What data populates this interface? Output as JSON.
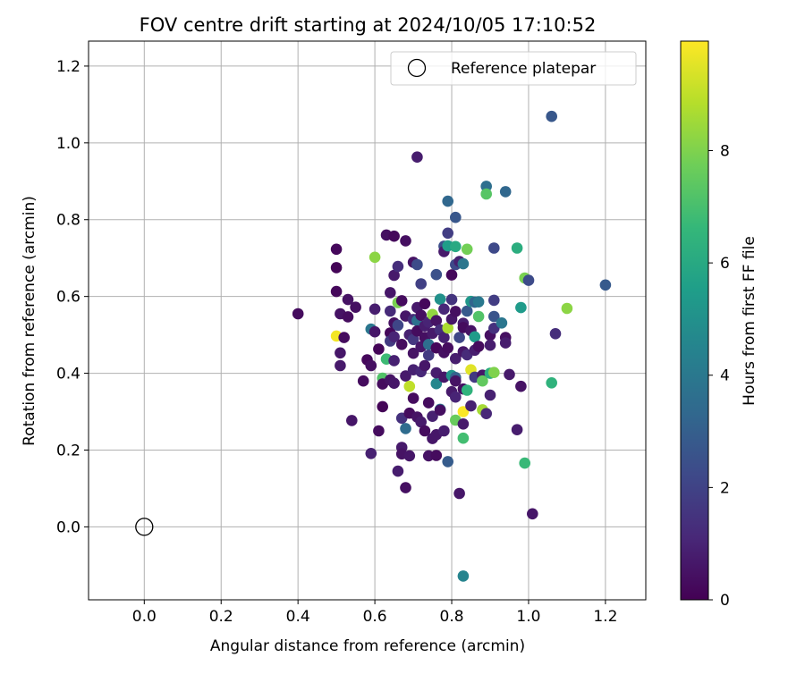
{
  "chart_data": {
    "type": "scatter",
    "title": "FOV centre drift starting at 2024/10/05 17:10:52",
    "xlabel": "Angular distance from reference (arcmin)",
    "ylabel": "Rotation from reference (arcmin)",
    "xlim": [
      -0.145,
      1.305
    ],
    "ylim": [
      -0.19,
      1.265
    ],
    "xticks": [
      "0.0",
      "0.2",
      "0.4",
      "0.6",
      "0.8",
      "1.0",
      "1.2"
    ],
    "yticks": [
      "0.0",
      "0.2",
      "0.4",
      "0.6",
      "0.8",
      "1.0",
      "1.2"
    ],
    "grid": true,
    "legend": {
      "placement": "top-right",
      "entries": [
        "Reference platepar"
      ]
    },
    "reference_point": {
      "x": 0.0,
      "y": 0.0
    },
    "colorbar": {
      "label": "Hours from first FF file",
      "colormap": "viridis",
      "range": [
        0,
        9.95
      ],
      "ticks": [
        "0",
        "2",
        "4",
        "6",
        "8"
      ],
      "stops": [
        "#440154",
        "#482878",
        "#3e4989",
        "#31688e",
        "#26828e",
        "#1f9e89",
        "#35b779",
        "#6ece58",
        "#b5de2b",
        "#fde725"
      ]
    },
    "points": [
      {
        "x": 0.4,
        "y": 0.555,
        "h": 0.3
      },
      {
        "x": 0.5,
        "y": 0.723,
        "h": 0.2
      },
      {
        "x": 0.5,
        "y": 0.675,
        "h": 0.1
      },
      {
        "x": 0.5,
        "y": 0.613,
        "h": 0.2
      },
      {
        "x": 0.5,
        "y": 0.497,
        "h": 9.8
      },
      {
        "x": 0.51,
        "y": 0.555,
        "h": 0.5
      },
      {
        "x": 0.51,
        "y": 0.453,
        "h": 0.6
      },
      {
        "x": 0.51,
        "y": 0.42,
        "h": 0.7
      },
      {
        "x": 0.52,
        "y": 0.493,
        "h": 0.3
      },
      {
        "x": 0.53,
        "y": 0.592,
        "h": 0.5
      },
      {
        "x": 0.53,
        "y": 0.547,
        "h": 0.3
      },
      {
        "x": 0.54,
        "y": 0.277,
        "h": 0.6
      },
      {
        "x": 0.55,
        "y": 0.572,
        "h": 0.4
      },
      {
        "x": 0.57,
        "y": 0.38,
        "h": 0.3
      },
      {
        "x": 0.58,
        "y": 0.435,
        "h": 0.2
      },
      {
        "x": 0.59,
        "y": 0.42,
        "h": 0.4
      },
      {
        "x": 0.59,
        "y": 0.515,
        "h": 3.9
      },
      {
        "x": 0.59,
        "y": 0.191,
        "h": 0.9
      },
      {
        "x": 0.6,
        "y": 0.702,
        "h": 8.2
      },
      {
        "x": 0.6,
        "y": 0.567,
        "h": 0.8
      },
      {
        "x": 0.6,
        "y": 0.508,
        "h": 0.6
      },
      {
        "x": 0.61,
        "y": 0.463,
        "h": 0.1
      },
      {
        "x": 0.61,
        "y": 0.25,
        "h": 0.3
      },
      {
        "x": 0.62,
        "y": 0.387,
        "h": 7.2
      },
      {
        "x": 0.62,
        "y": 0.313,
        "h": 0.1
      },
      {
        "x": 0.62,
        "y": 0.372,
        "h": 0.3
      },
      {
        "x": 0.63,
        "y": 0.76,
        "h": 0.4
      },
      {
        "x": 0.63,
        "y": 0.437,
        "h": 6.8
      },
      {
        "x": 0.64,
        "y": 0.61,
        "h": 0.6
      },
      {
        "x": 0.64,
        "y": 0.562,
        "h": 1.2
      },
      {
        "x": 0.64,
        "y": 0.505,
        "h": 0.2
      },
      {
        "x": 0.64,
        "y": 0.484,
        "h": 1.7
      },
      {
        "x": 0.64,
        "y": 0.383,
        "h": 0.5
      },
      {
        "x": 0.65,
        "y": 0.757,
        "h": 0.2
      },
      {
        "x": 0.65,
        "y": 0.655,
        "h": 0.7
      },
      {
        "x": 0.65,
        "y": 0.531,
        "h": 0.4
      },
      {
        "x": 0.65,
        "y": 0.495,
        "h": 1.0
      },
      {
        "x": 0.65,
        "y": 0.374,
        "h": 0.6
      },
      {
        "x": 0.65,
        "y": 0.433,
        "h": 0.9
      },
      {
        "x": 0.66,
        "y": 0.678,
        "h": 1.3
      },
      {
        "x": 0.66,
        "y": 0.584,
        "h": 7.9
      },
      {
        "x": 0.66,
        "y": 0.525,
        "h": 2.1
      },
      {
        "x": 0.66,
        "y": 0.145,
        "h": 0.8
      },
      {
        "x": 0.67,
        "y": 0.207,
        "h": 0.7
      },
      {
        "x": 0.67,
        "y": 0.19,
        "h": 0.5
      },
      {
        "x": 0.67,
        "y": 0.283,
        "h": 1.4
      },
      {
        "x": 0.67,
        "y": 0.475,
        "h": 0.3
      },
      {
        "x": 0.67,
        "y": 0.589,
        "h": 0.3
      },
      {
        "x": 0.68,
        "y": 0.745,
        "h": 0.4
      },
      {
        "x": 0.68,
        "y": 0.549,
        "h": 0.6
      },
      {
        "x": 0.68,
        "y": 0.102,
        "h": 0.4
      },
      {
        "x": 0.68,
        "y": 0.256,
        "h": 3.5
      },
      {
        "x": 0.68,
        "y": 0.393,
        "h": 0.7
      },
      {
        "x": 0.69,
        "y": 0.5,
        "h": 0.9
      },
      {
        "x": 0.69,
        "y": 0.296,
        "h": 0.3
      },
      {
        "x": 0.69,
        "y": 0.185,
        "h": 0.6
      },
      {
        "x": 0.69,
        "y": 0.366,
        "h": 9.0
      },
      {
        "x": 0.7,
        "y": 0.689,
        "h": 0.5
      },
      {
        "x": 0.7,
        "y": 0.54,
        "h": 1.2
      },
      {
        "x": 0.7,
        "y": 0.452,
        "h": 0.5
      },
      {
        "x": 0.7,
        "y": 0.488,
        "h": 1.6
      },
      {
        "x": 0.7,
        "y": 0.409,
        "h": 0.9
      },
      {
        "x": 0.7,
        "y": 0.335,
        "h": 0.3
      },
      {
        "x": 0.71,
        "y": 0.683,
        "h": 2.3
      },
      {
        "x": 0.71,
        "y": 0.571,
        "h": 0.7
      },
      {
        "x": 0.71,
        "y": 0.537,
        "h": 3.7
      },
      {
        "x": 0.71,
        "y": 0.51,
        "h": 0.3
      },
      {
        "x": 0.71,
        "y": 0.286,
        "h": 0.5
      },
      {
        "x": 0.71,
        "y": 0.963,
        "h": 0.8
      },
      {
        "x": 0.72,
        "y": 0.633,
        "h": 1.9
      },
      {
        "x": 0.72,
        "y": 0.551,
        "h": 0.4
      },
      {
        "x": 0.72,
        "y": 0.469,
        "h": 0.6
      },
      {
        "x": 0.72,
        "y": 0.404,
        "h": 1.1
      },
      {
        "x": 0.72,
        "y": 0.273,
        "h": 0.7
      },
      {
        "x": 0.73,
        "y": 0.25,
        "h": 0.3
      },
      {
        "x": 0.73,
        "y": 0.581,
        "h": 0.2
      },
      {
        "x": 0.73,
        "y": 0.523,
        "h": 0.8
      },
      {
        "x": 0.73,
        "y": 0.493,
        "h": 0.4
      },
      {
        "x": 0.73,
        "y": 0.42,
        "h": 0.6
      },
      {
        "x": 0.74,
        "y": 0.533,
        "h": 1.0
      },
      {
        "x": 0.74,
        "y": 0.475,
        "h": 3.6
      },
      {
        "x": 0.74,
        "y": 0.323,
        "h": 0.3
      },
      {
        "x": 0.74,
        "y": 0.447,
        "h": 1.7
      },
      {
        "x": 0.74,
        "y": 0.185,
        "h": 0.5
      },
      {
        "x": 0.75,
        "y": 0.553,
        "h": 8.3
      },
      {
        "x": 0.75,
        "y": 0.504,
        "h": 0.7
      },
      {
        "x": 0.75,
        "y": 0.288,
        "h": 0.9
      },
      {
        "x": 0.75,
        "y": 0.23,
        "h": 0.6
      },
      {
        "x": 0.76,
        "y": 0.657,
        "h": 2.5
      },
      {
        "x": 0.76,
        "y": 0.537,
        "h": 0.5
      },
      {
        "x": 0.76,
        "y": 0.466,
        "h": 0.2
      },
      {
        "x": 0.76,
        "y": 0.373,
        "h": 4.6
      },
      {
        "x": 0.76,
        "y": 0.401,
        "h": 0.8
      },
      {
        "x": 0.76,
        "y": 0.24,
        "h": 0.6
      },
      {
        "x": 0.76,
        "y": 0.186,
        "h": 0.3
      },
      {
        "x": 0.77,
        "y": 0.593,
        "h": 5.0
      },
      {
        "x": 0.77,
        "y": 0.513,
        "h": 1.3
      },
      {
        "x": 0.77,
        "y": 0.306,
        "h": 3.9
      },
      {
        "x": 0.77,
        "y": 0.304,
        "h": 0.4
      },
      {
        "x": 0.78,
        "y": 0.731,
        "h": 2.4
      },
      {
        "x": 0.78,
        "y": 0.717,
        "h": 0.7
      },
      {
        "x": 0.78,
        "y": 0.567,
        "h": 1.1
      },
      {
        "x": 0.78,
        "y": 0.493,
        "h": 0.9
      },
      {
        "x": 0.78,
        "y": 0.454,
        "h": 0.4
      },
      {
        "x": 0.78,
        "y": 0.39,
        "h": 0.6
      },
      {
        "x": 0.78,
        "y": 0.25,
        "h": 0.8
      },
      {
        "x": 0.79,
        "y": 0.732,
        "h": 5.5
      },
      {
        "x": 0.79,
        "y": 0.518,
        "h": 8.7
      },
      {
        "x": 0.79,
        "y": 0.466,
        "h": 0.3
      },
      {
        "x": 0.79,
        "y": 0.17,
        "h": 2.9
      },
      {
        "x": 0.79,
        "y": 0.848,
        "h": 3.3
      },
      {
        "x": 0.79,
        "y": 0.765,
        "h": 1.8
      },
      {
        "x": 0.8,
        "y": 0.656,
        "h": 0.2
      },
      {
        "x": 0.8,
        "y": 0.592,
        "h": 1.5
      },
      {
        "x": 0.8,
        "y": 0.541,
        "h": 0.6
      },
      {
        "x": 0.8,
        "y": 0.394,
        "h": 5.1
      },
      {
        "x": 0.8,
        "y": 0.352,
        "h": 0.7
      },
      {
        "x": 0.81,
        "y": 0.806,
        "h": 2.7
      },
      {
        "x": 0.81,
        "y": 0.73,
        "h": 6.0
      },
      {
        "x": 0.81,
        "y": 0.683,
        "h": 2.2
      },
      {
        "x": 0.81,
        "y": 0.561,
        "h": 0.4
      },
      {
        "x": 0.81,
        "y": 0.438,
        "h": 0.8
      },
      {
        "x": 0.81,
        "y": 0.338,
        "h": 1.0
      },
      {
        "x": 0.81,
        "y": 0.389,
        "h": 3.1
      },
      {
        "x": 0.81,
        "y": 0.38,
        "h": 0.5
      },
      {
        "x": 0.81,
        "y": 0.278,
        "h": 7.6
      },
      {
        "x": 0.82,
        "y": 0.691,
        "h": 0.9
      },
      {
        "x": 0.82,
        "y": 0.493,
        "h": 2.1
      },
      {
        "x": 0.82,
        "y": 0.087,
        "h": 0.6
      },
      {
        "x": 0.83,
        "y": 0.3,
        "h": 9.9
      },
      {
        "x": 0.83,
        "y": 0.231,
        "h": 6.9
      },
      {
        "x": 0.83,
        "y": 0.685,
        "h": 3.9
      },
      {
        "x": 0.83,
        "y": 0.53,
        "h": 0.8
      },
      {
        "x": 0.83,
        "y": 0.519,
        "h": 0.3
      },
      {
        "x": 0.83,
        "y": 0.456,
        "h": 0.6
      },
      {
        "x": 0.83,
        "y": 0.359,
        "h": 0.4
      },
      {
        "x": 0.83,
        "y": 0.268,
        "h": 0.7
      },
      {
        "x": 0.83,
        "y": -0.128,
        "h": 4.5
      },
      {
        "x": 0.84,
        "y": 0.723,
        "h": 7.8
      },
      {
        "x": 0.84,
        "y": 0.562,
        "h": 2.8
      },
      {
        "x": 0.84,
        "y": 0.448,
        "h": 1.2
      },
      {
        "x": 0.84,
        "y": 0.356,
        "h": 6.4
      },
      {
        "x": 0.85,
        "y": 0.587,
        "h": 5.3
      },
      {
        "x": 0.85,
        "y": 0.511,
        "h": 0.5
      },
      {
        "x": 0.85,
        "y": 0.409,
        "h": 9.5
      },
      {
        "x": 0.85,
        "y": 0.315,
        "h": 0.9
      },
      {
        "x": 0.86,
        "y": 0.585,
        "h": 3.2
      },
      {
        "x": 0.86,
        "y": 0.495,
        "h": 5.4
      },
      {
        "x": 0.86,
        "y": 0.46,
        "h": 0.8
      },
      {
        "x": 0.86,
        "y": 0.39,
        "h": 1.7
      },
      {
        "x": 0.87,
        "y": 0.586,
        "h": 4.0
      },
      {
        "x": 0.87,
        "y": 0.548,
        "h": 7.2
      },
      {
        "x": 0.87,
        "y": 0.47,
        "h": 0.3
      },
      {
        "x": 0.88,
        "y": 0.395,
        "h": 0.6
      },
      {
        "x": 0.88,
        "y": 0.38,
        "h": 7.5
      },
      {
        "x": 0.88,
        "y": 0.305,
        "h": 8.6
      },
      {
        "x": 0.89,
        "y": 0.887,
        "h": 3.6
      },
      {
        "x": 0.89,
        "y": 0.867,
        "h": 7.3
      },
      {
        "x": 0.89,
        "y": 0.295,
        "h": 1.1
      },
      {
        "x": 0.9,
        "y": 0.499,
        "h": 0.4
      },
      {
        "x": 0.9,
        "y": 0.473,
        "h": 0.8
      },
      {
        "x": 0.9,
        "y": 0.4,
        "h": 6.2
      },
      {
        "x": 0.9,
        "y": 0.343,
        "h": 0.9
      },
      {
        "x": 0.91,
        "y": 0.726,
        "h": 2.2
      },
      {
        "x": 0.91,
        "y": 0.59,
        "h": 1.8
      },
      {
        "x": 0.91,
        "y": 0.548,
        "h": 2.6
      },
      {
        "x": 0.91,
        "y": 0.517,
        "h": 1.4
      },
      {
        "x": 0.91,
        "y": 0.402,
        "h": 8.0
      },
      {
        "x": 0.93,
        "y": 0.531,
        "h": 3.9
      },
      {
        "x": 0.94,
        "y": 0.873,
        "h": 3.3
      },
      {
        "x": 0.94,
        "y": 0.493,
        "h": 0.4
      },
      {
        "x": 0.94,
        "y": 0.479,
        "h": 0.8
      },
      {
        "x": 0.95,
        "y": 0.397,
        "h": 0.7
      },
      {
        "x": 0.97,
        "y": 0.726,
        "h": 6.2
      },
      {
        "x": 0.97,
        "y": 0.253,
        "h": 0.8
      },
      {
        "x": 0.98,
        "y": 0.571,
        "h": 5.4
      },
      {
        "x": 0.98,
        "y": 0.366,
        "h": 0.5
      },
      {
        "x": 0.99,
        "y": 0.166,
        "h": 6.7
      },
      {
        "x": 0.99,
        "y": 0.648,
        "h": 7.9
      },
      {
        "x": 1.0,
        "y": 0.642,
        "h": 2.3
      },
      {
        "x": 1.01,
        "y": 0.034,
        "h": 0.6
      },
      {
        "x": 1.06,
        "y": 1.069,
        "h": 2.7
      },
      {
        "x": 1.06,
        "y": 0.375,
        "h": 6.4
      },
      {
        "x": 1.07,
        "y": 0.503,
        "h": 1.3
      },
      {
        "x": 1.1,
        "y": 0.569,
        "h": 8.2
      },
      {
        "x": 1.2,
        "y": 0.63,
        "h": 2.8
      }
    ]
  }
}
